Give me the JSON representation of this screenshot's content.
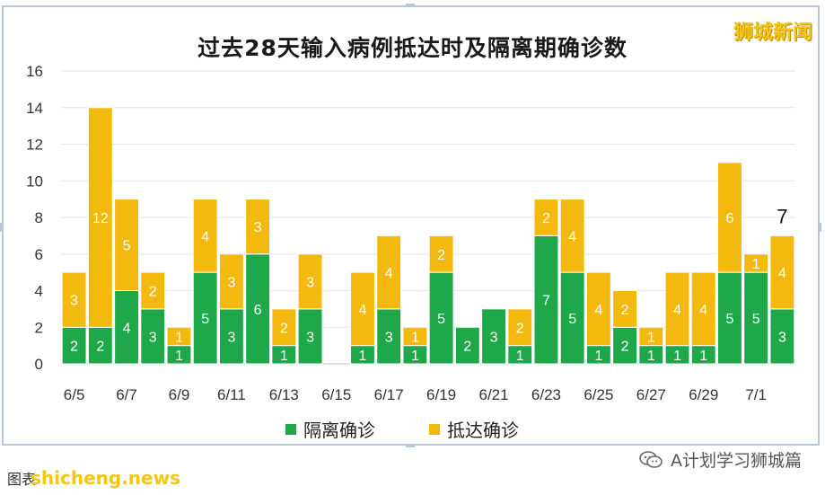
{
  "brand": "狮城新闻",
  "footer": {
    "note": "图表",
    "watermark": "shicheng.news",
    "account": "A计划学习狮城篇"
  },
  "colors": {
    "quarantine": "#1fa84a",
    "arrival": "#f3b90f"
  },
  "chart_data": {
    "type": "bar",
    "stacked": true,
    "title": "过去28天输入病例抵达时及隔离期确诊数",
    "categories": [
      "6/5",
      "6/6",
      "6/7",
      "6/8",
      "6/9",
      "6/10",
      "6/11",
      "6/12",
      "6/13",
      "6/14",
      "6/15",
      "6/16",
      "6/17",
      "6/18",
      "6/19",
      "6/20",
      "6/21",
      "6/22",
      "6/23",
      "6/24",
      "6/25",
      "6/26",
      "6/27",
      "6/28",
      "6/29",
      "6/30",
      "7/1",
      "7/2"
    ],
    "tick_labels": [
      "6/5",
      "6/7",
      "6/9",
      "6/11",
      "6/13",
      "6/15",
      "6/17",
      "6/19",
      "6/21",
      "6/23",
      "6/25",
      "6/27",
      "6/29",
      "7/1"
    ],
    "series": [
      {
        "name": "隔离确诊",
        "values": [
          2,
          2,
          4,
          3,
          1,
          5,
          3,
          6,
          1,
          3,
          0,
          1,
          3,
          1,
          5,
          2,
          3,
          1,
          7,
          5,
          1,
          2,
          1,
          1,
          1,
          5,
          5,
          3
        ]
      },
      {
        "name": "抵达确诊",
        "values": [
          3,
          12,
          5,
          2,
          1,
          4,
          3,
          3,
          2,
          3,
          0,
          4,
          4,
          1,
          2,
          0,
          0,
          2,
          2,
          4,
          4,
          2,
          1,
          4,
          4,
          6,
          1,
          4
        ]
      }
    ],
    "ylim": [
      0,
      16
    ],
    "yticks": [
      0,
      2,
      4,
      6,
      8,
      10,
      12,
      14,
      16
    ],
    "annotation": {
      "category": "7/2",
      "text": "7"
    },
    "legend": "bottom"
  }
}
